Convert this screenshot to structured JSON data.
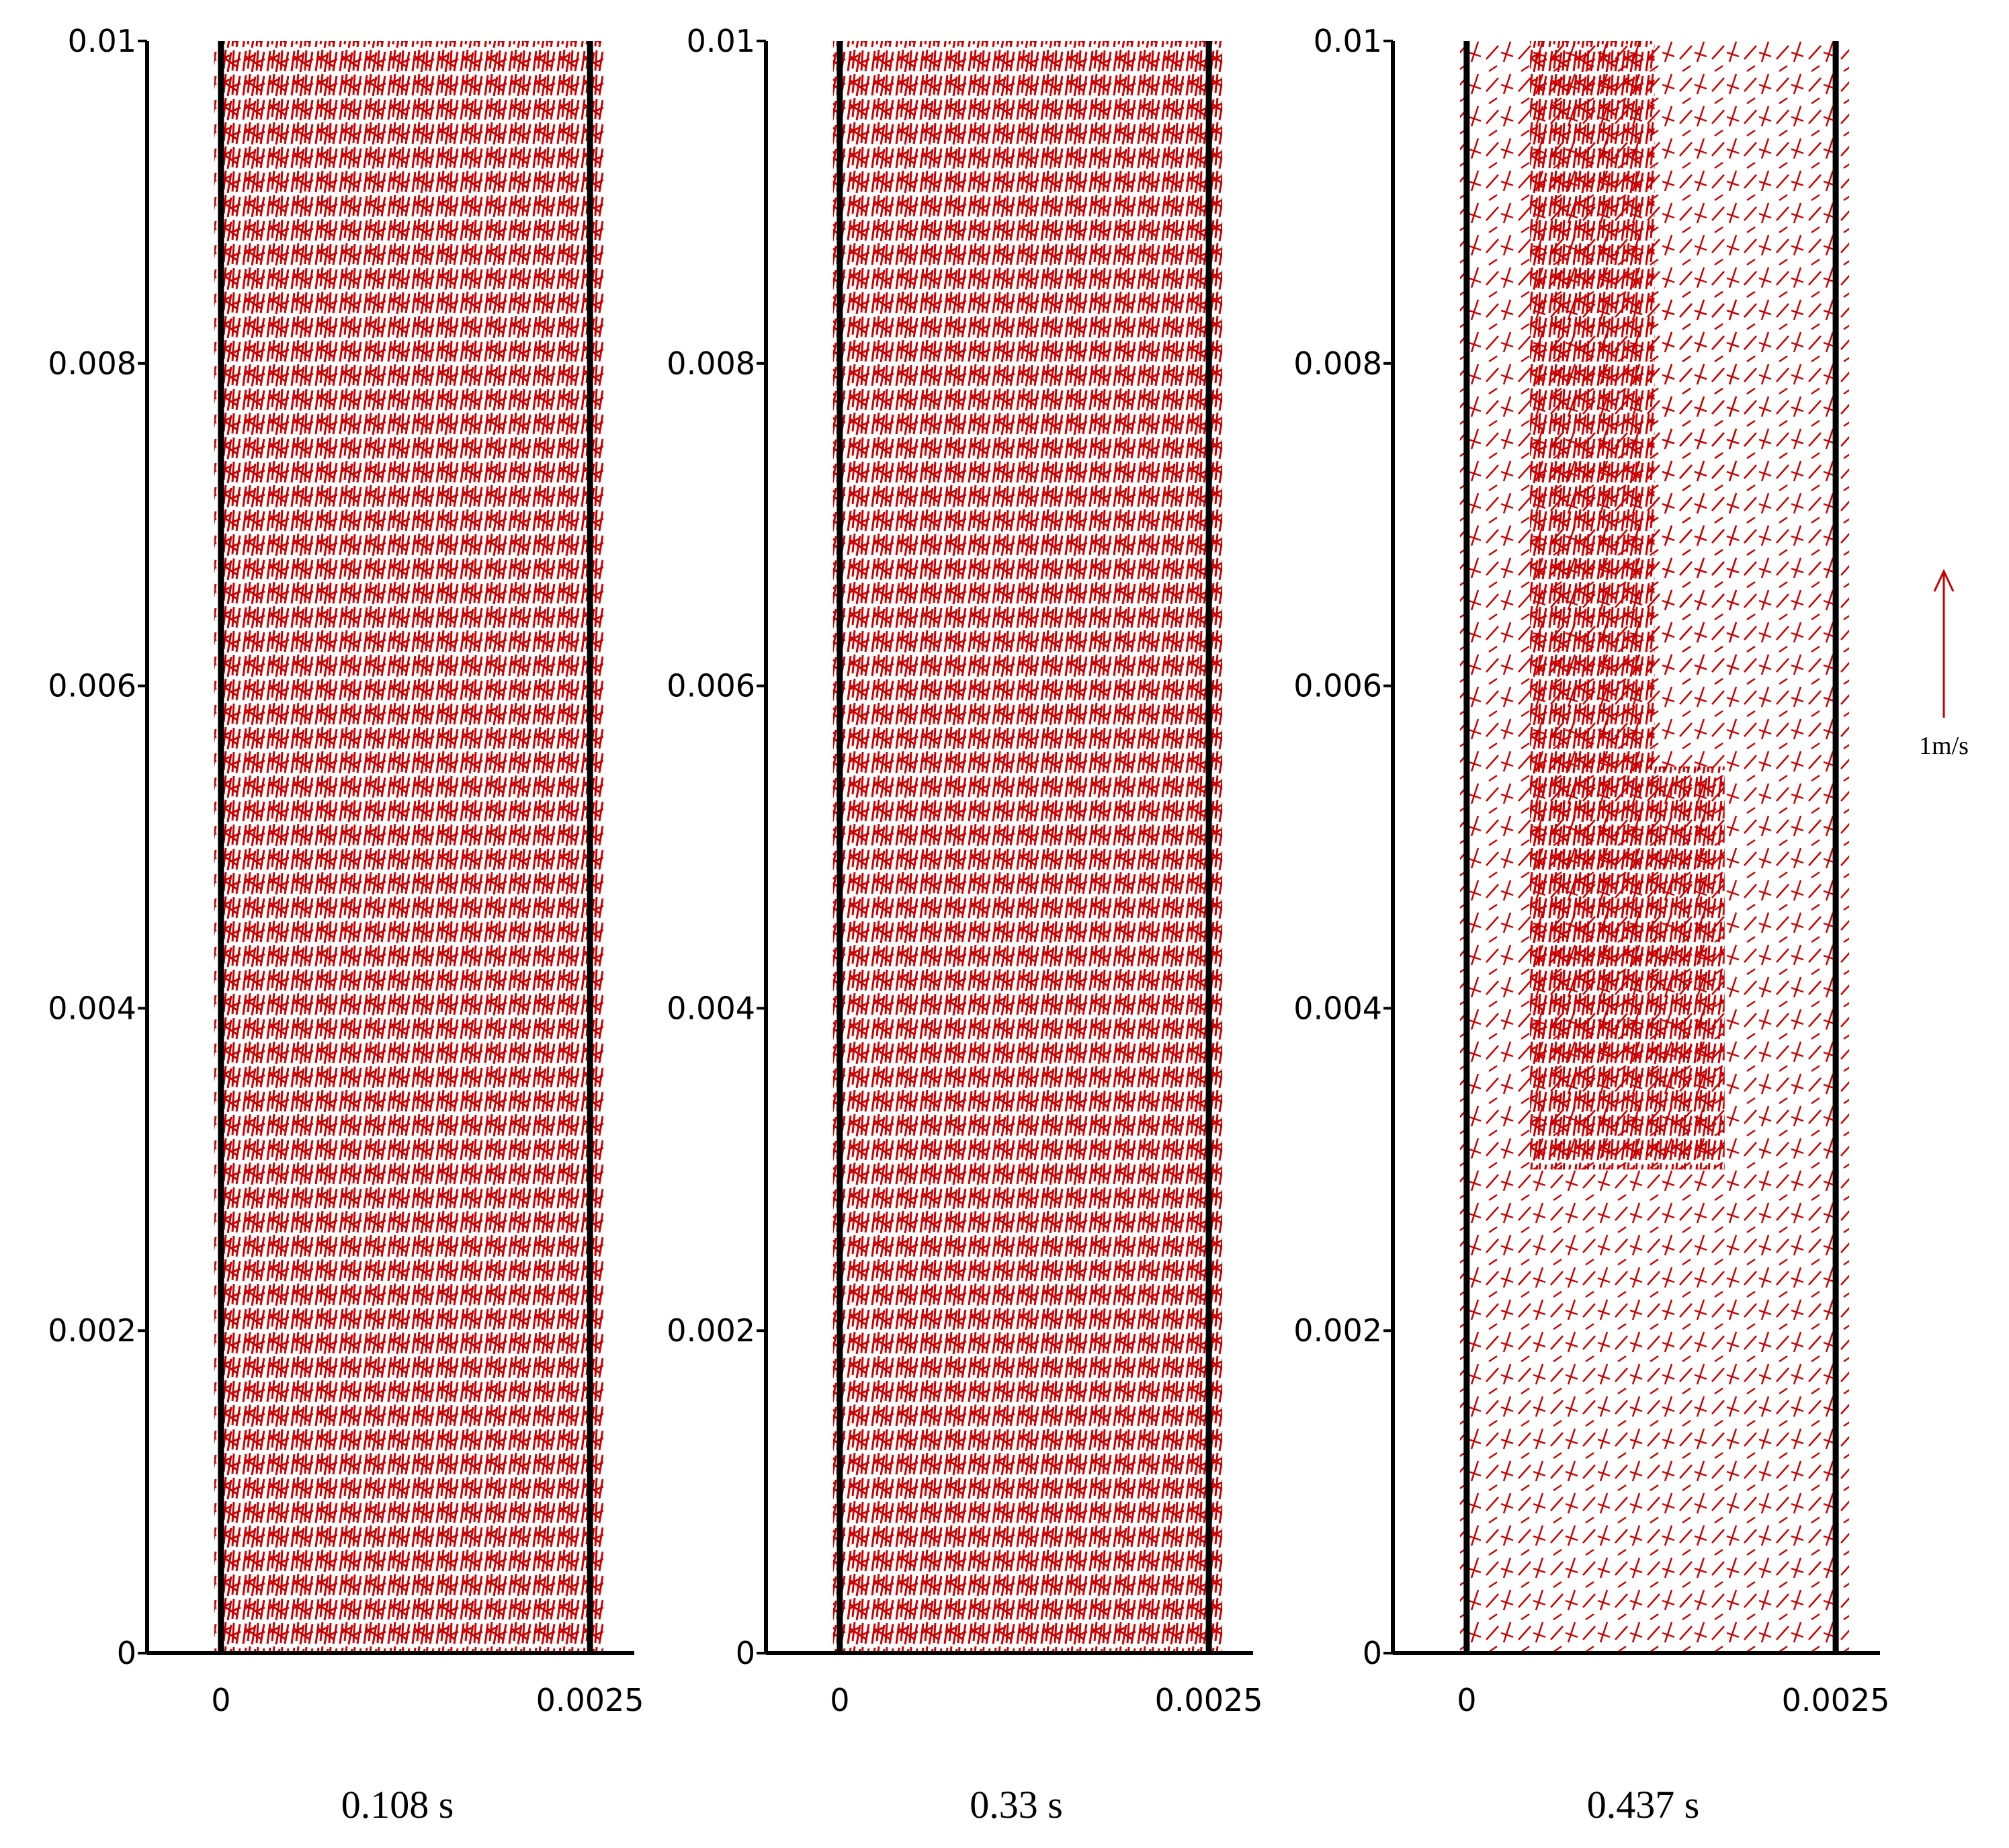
{
  "chart_data": [
    {
      "type": "quiver",
      "title": "0.108 s",
      "xlim": [
        -0.0005,
        0.0028
      ],
      "ylim": [
        0,
        0.01
      ],
      "xticks": [
        0,
        0.0025
      ],
      "yticks": [
        0,
        0.002,
        0.004,
        0.006,
        0.008,
        0.01
      ],
      "color": "#cc0000"
    },
    {
      "type": "quiver",
      "title": "0.33 s",
      "xlim": [
        -0.0005,
        0.0028
      ],
      "ylim": [
        0,
        0.01
      ],
      "xticks": [
        0,
        0.0025
      ],
      "yticks": [
        0,
        0.002,
        0.004,
        0.006,
        0.008,
        0.01
      ],
      "color": "#cc0000"
    },
    {
      "type": "quiver",
      "title": "0.437 s",
      "xlim": [
        -0.0005,
        0.0028
      ],
      "ylim": [
        0,
        0.01
      ],
      "xticks": [
        0,
        0.0025
      ],
      "yticks": [
        0,
        0.002,
        0.004,
        0.006,
        0.008,
        0.01
      ],
      "color": "#cc0000",
      "key_label": "1m/s"
    }
  ]
}
